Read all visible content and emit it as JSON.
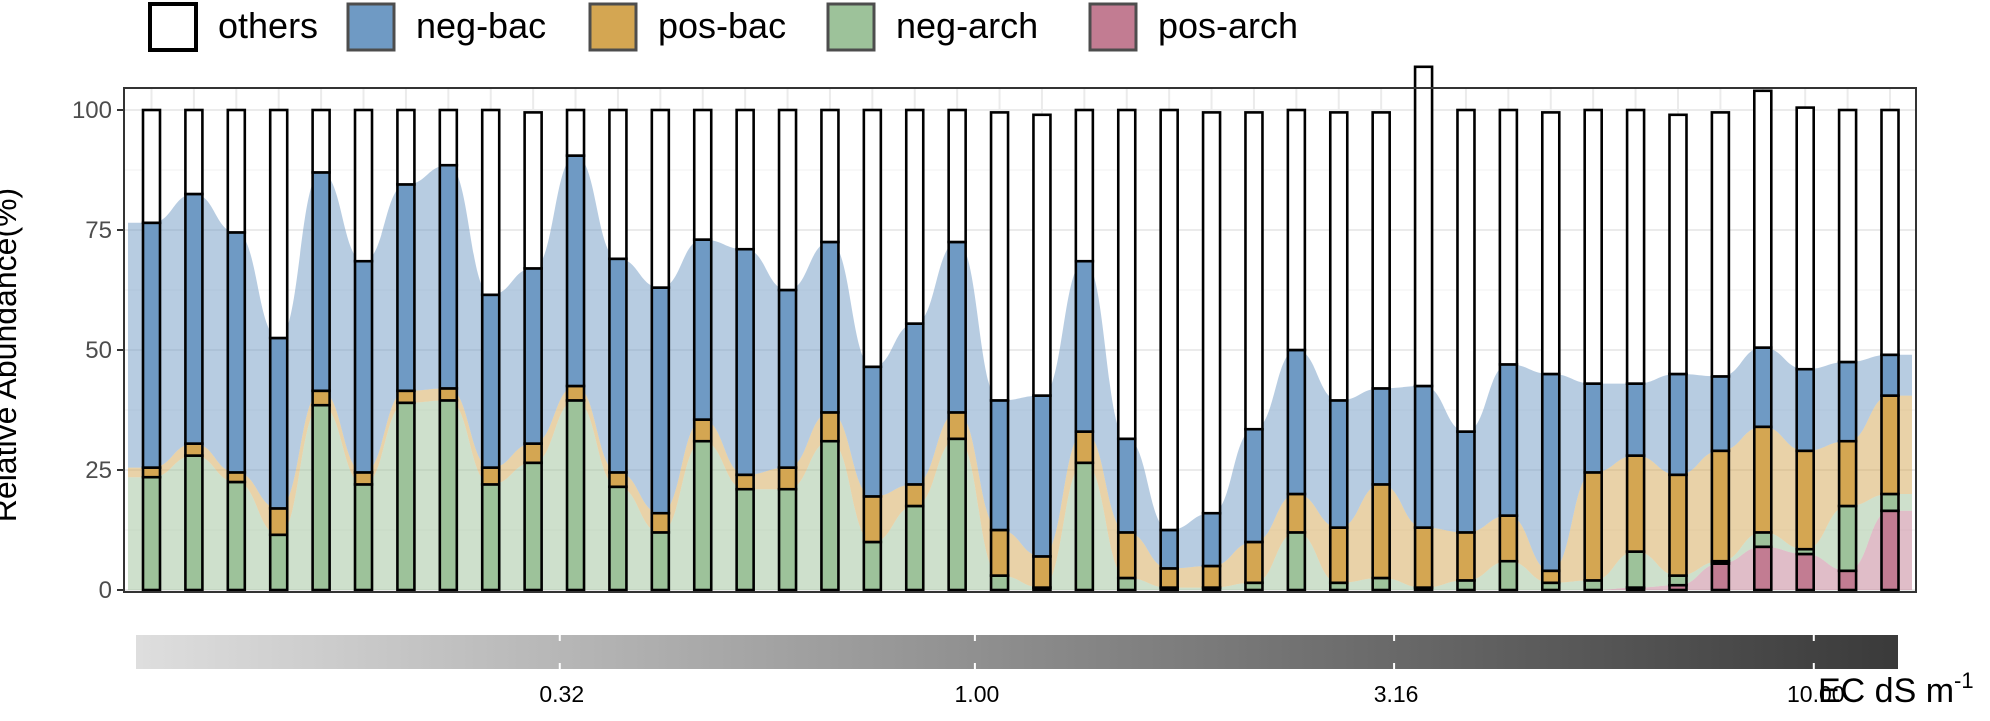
{
  "chart_data": {
    "type": "bar",
    "stacked": true,
    "percent_stacked": true,
    "ylabel": "Relative Abundance(%)",
    "ylim": [
      0,
      100
    ],
    "yticks": [
      0,
      25,
      50,
      75,
      100
    ],
    "grid": true,
    "legend_position": "top-left",
    "series": [
      {
        "name": "pos-arch",
        "color": "#c27c92",
        "values": [
          0,
          0,
          0,
          0,
          0,
          0,
          0,
          0,
          0,
          0,
          0,
          0,
          0,
          0,
          0,
          0,
          0,
          0,
          0,
          0,
          0,
          0,
          0,
          0,
          0,
          0,
          0,
          0,
          0,
          0,
          0,
          0,
          0,
          0,
          0,
          0.5,
          1.0,
          5.5,
          9.0,
          7.5,
          4.0,
          16.5
        ]
      },
      {
        "name": "neg-arch",
        "color": "#9dc29a",
        "values": [
          23.5,
          28.0,
          22.5,
          11.5,
          38.5,
          22.0,
          39.0,
          39.5,
          22.0,
          26.5,
          39.5,
          21.5,
          12.0,
          31.0,
          21.0,
          21.0,
          31.0,
          10.0,
          17.5,
          31.5,
          3.0,
          0.5,
          26.5,
          2.5,
          0.5,
          0.5,
          1.5,
          12.0,
          1.5,
          2.5,
          0.5,
          2.0,
          6.0,
          1.5,
          2.0,
          7.5,
          2.0,
          0.5,
          3.0,
          1.0,
          13.5,
          3.5
        ]
      },
      {
        "name": "pos-bac",
        "color": "#d4a652",
        "values": [
          2.0,
          2.5,
          2.0,
          5.5,
          3.0,
          2.5,
          2.5,
          2.5,
          3.5,
          4.0,
          3.0,
          3.0,
          4.0,
          4.5,
          3.0,
          4.5,
          6.0,
          9.5,
          4.5,
          5.5,
          9.5,
          6.5,
          6.5,
          9.5,
          4.0,
          4.5,
          8.5,
          8.0,
          11.5,
          19.5,
          12.5,
          10.0,
          9.5,
          2.5,
          22.5,
          20.0,
          21.0,
          23.0,
          22.0,
          20.5,
          13.5,
          20.5
        ]
      },
      {
        "name": "neg-bac",
        "color": "#6f9ac4",
        "values": [
          51.0,
          52.0,
          50.0,
          35.5,
          45.5,
          44.0,
          43.0,
          46.5,
          36.0,
          36.5,
          48.0,
          44.5,
          47.0,
          37.5,
          47.0,
          37.0,
          35.5,
          27.0,
          33.5,
          35.5,
          27.0,
          33.5,
          35.5,
          19.5,
          8.0,
          11.0,
          23.5,
          30.0,
          26.5,
          20.0,
          29.5,
          21.0,
          31.5,
          41.0,
          18.5,
          15.0,
          21.0,
          15.5,
          16.5,
          17.0,
          16.5,
          8.5
        ]
      },
      {
        "name": "others",
        "color": "#ffffff",
        "values": [
          23.5,
          17.5,
          25.5,
          47.5,
          13.0,
          31.5,
          15.5,
          11.5,
          38.5,
          32.5,
          9.5,
          31.0,
          37.0,
          27.0,
          29.0,
          37.5,
          27.5,
          53.5,
          44.5,
          27.5,
          60.0,
          58.5,
          31.5,
          68.5,
          87.5,
          83.5,
          66.0,
          50.0,
          60.0,
          57.5,
          66.5,
          67.0,
          53.0,
          54.5,
          57.0,
          57.0,
          54.0,
          55.0,
          53.5,
          54.5,
          52.5,
          51.0
        ]
      }
    ],
    "colorbar": {
      "title": "EC dS m",
      "title_superscript": "-1",
      "ticks": [
        "0.32",
        "1.00",
        "3.16",
        "10.00"
      ],
      "tick_values": [
        0.32,
        1.0,
        3.16,
        10.0
      ],
      "scale": "log",
      "range": [
        0.1,
        12.6
      ]
    }
  }
}
